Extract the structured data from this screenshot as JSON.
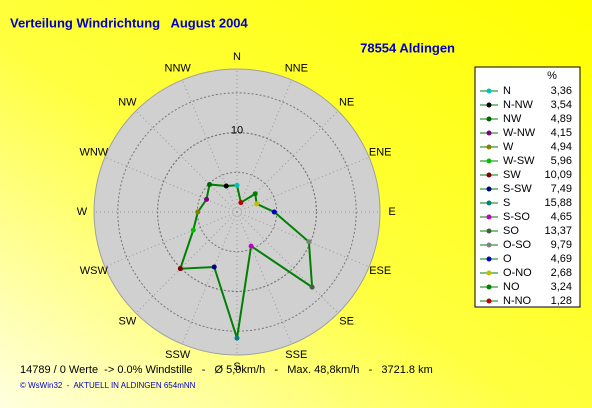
{
  "chart_data": {
    "type": "windrose",
    "title": "Verteilung Windrichtung   August 2004",
    "subtitle": "78554 Aldingen",
    "compass": [
      "N",
      "NNE",
      "NE",
      "ENE",
      "E",
      "ESE",
      "SE",
      "SSE",
      "S",
      "SSW",
      "SW",
      "WSW",
      "W",
      "WNW",
      "NW",
      "NNW"
    ],
    "legend_unit": "%",
    "line_color": "#008000",
    "ylim": [
      0,
      18
    ],
    "yticks": [
      10
    ],
    "grid_step": 5,
    "series": [
      {
        "name": "N",
        "color": "#00c0c0",
        "values": [
          3.36
        ],
        "value_labels": [
          "3,36"
        ]
      },
      {
        "name": "N-NW",
        "color": "#000000",
        "values": [
          3.54
        ],
        "value_labels": [
          "3,54"
        ]
      },
      {
        "name": "NW",
        "color": "#006000",
        "values": [
          4.89
        ],
        "value_labels": [
          "4,89"
        ]
      },
      {
        "name": "W-NW",
        "color": "#800080",
        "values": [
          4.15
        ],
        "value_labels": [
          "4,15"
        ]
      },
      {
        "name": "W",
        "color": "#808000",
        "values": [
          4.94
        ],
        "value_labels": [
          "4,94"
        ]
      },
      {
        "name": "W-SW",
        "color": "#00c000",
        "values": [
          5.96
        ],
        "value_labels": [
          "5,96"
        ]
      },
      {
        "name": "SW",
        "color": "#800000",
        "values": [
          10.09
        ],
        "value_labels": [
          "10,09"
        ]
      },
      {
        "name": "S-SW",
        "color": "#000080",
        "values": [
          7.49
        ],
        "value_labels": [
          "7,49"
        ]
      },
      {
        "name": "S",
        "color": "#008080",
        "values": [
          15.88
        ],
        "value_labels": [
          "15,88"
        ]
      },
      {
        "name": "S-SO",
        "color": "#c000c0",
        "values": [
          4.65
        ],
        "value_labels": [
          "4,65"
        ]
      },
      {
        "name": "SO",
        "color": "#406040",
        "values": [
          13.37
        ],
        "value_labels": [
          "13,37"
        ]
      },
      {
        "name": "O-SO",
        "color": "#808080",
        "values": [
          9.79
        ],
        "value_labels": [
          "9,79"
        ]
      },
      {
        "name": "O",
        "color": "#0000c0",
        "values": [
          4.69
        ],
        "value_labels": [
          "4,69"
        ]
      },
      {
        "name": "O-NO",
        "color": "#c0c000",
        "values": [
          2.68
        ],
        "value_labels": [
          "2,68"
        ]
      },
      {
        "name": "NO",
        "color": "#008000",
        "values": [
          3.24
        ],
        "value_labels": [
          "3,24"
        ]
      },
      {
        "name": "N-NO",
        "color": "#c00000",
        "values": [
          1.28
        ],
        "value_labels": [
          "1,28"
        ]
      }
    ],
    "footer": "14789 / 0 Werte  -> 0.0% Windstille   -   Ø 5,0km/h   -   Max. 48,8km/h   -   3721.8 km",
    "credit": "© WsWin32  -  AKTUELL IN ALDINGEN 654mNN"
  }
}
